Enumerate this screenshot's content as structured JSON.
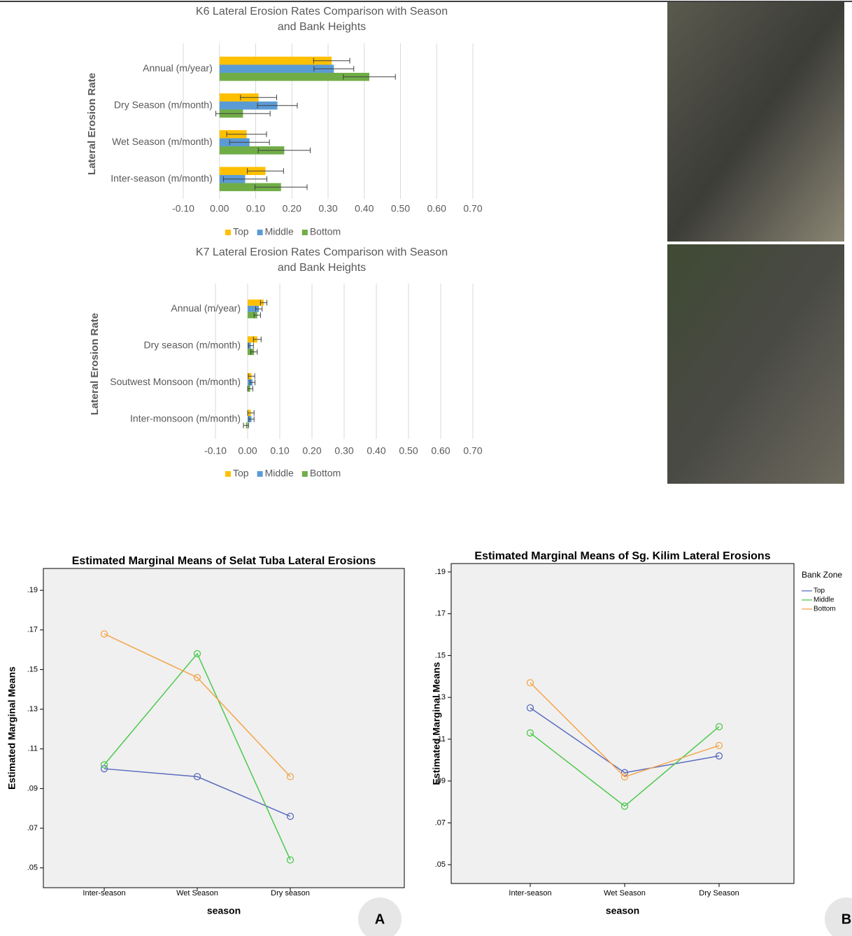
{
  "chart_data": [
    {
      "type": "bar",
      "orientation": "horizontal",
      "title": "K6 Lateral Erosion Rates Comparison with Season and Bank Heights",
      "y_label": "Lateral Erosion Rate",
      "categories": [
        "Annual (m/year)",
        "Dry Season (m/month)",
        "Wet Season (m/month)",
        "Inter-season (m/month)"
      ],
      "series": [
        {
          "name": "Top",
          "color": "#ffc000",
          "values": [
            0.31,
            0.108,
            0.075,
            0.127
          ],
          "errors": [
            0.05,
            0.05,
            0.055,
            0.05
          ]
        },
        {
          "name": "Middle",
          "color": "#5b9bd5",
          "values": [
            0.316,
            0.16,
            0.083,
            0.071
          ],
          "errors": [
            0.055,
            0.055,
            0.055,
            0.06
          ]
        },
        {
          "name": "Bottom",
          "color": "#70ad47",
          "values": [
            0.414,
            0.065,
            0.179,
            0.17
          ],
          "errors": [
            0.072,
            0.075,
            0.072,
            0.072
          ]
        }
      ],
      "xlim": [
        -0.1,
        0.7
      ],
      "xticks": [
        {
          "value": -0.1,
          "label": "-0.10"
        },
        {
          "value": 0,
          "label": "0.00"
        },
        {
          "value": 0.1,
          "label": "0.10"
        },
        {
          "value": 0.2,
          "label": "0.20"
        },
        {
          "value": 0.3,
          "label": "0.30"
        },
        {
          "value": 0.4,
          "label": "0.40"
        },
        {
          "value": 0.5,
          "label": "0.50"
        },
        {
          "value": 0.6,
          "label": "0.60"
        },
        {
          "value": 0.7,
          "label": "0.70"
        }
      ],
      "grid": true,
      "legend": "bottom"
    },
    {
      "type": "bar",
      "orientation": "horizontal",
      "title": "K7 Lateral Erosion Rates Comparison with Season and Bank Heights",
      "y_label": "Lateral Erosion Rate",
      "categories": [
        "Annual (m/year)",
        "Dry season (m/month)",
        "Soutwest Monsoon (m/month)",
        "Inter-monsoon (m/month)"
      ],
      "series": [
        {
          "name": "Top",
          "color": "#ffc000",
          "values": [
            0.05,
            0.03,
            0.012,
            0.01
          ],
          "errors": [
            0.01,
            0.012,
            0.01,
            0.01
          ]
        },
        {
          "name": "Middle",
          "color": "#5b9bd5",
          "values": [
            0.035,
            0.01,
            0.015,
            0.012
          ],
          "errors": [
            0.01,
            0.008,
            0.008,
            0.008
          ]
        },
        {
          "name": "Bottom",
          "color": "#70ad47",
          "values": [
            0.03,
            0.02,
            0.008,
            -0.005
          ],
          "errors": [
            0.01,
            0.01,
            0.008,
            0.008
          ]
        }
      ],
      "xlim": [
        -0.1,
        0.7
      ],
      "xticks": [
        {
          "value": -0.1,
          "label": "-0.10"
        },
        {
          "value": 0,
          "label": "0.00"
        },
        {
          "value": 0.1,
          "label": "0.10"
        },
        {
          "value": 0.2,
          "label": "0.20"
        },
        {
          "value": 0.3,
          "label": "0.30"
        },
        {
          "value": 0.4,
          "label": "0.40"
        },
        {
          "value": 0.5,
          "label": "0.50"
        },
        {
          "value": 0.6,
          "label": "0.60"
        },
        {
          "value": 0.7,
          "label": "0.70"
        }
      ],
      "grid": true,
      "legend": "bottom"
    },
    {
      "type": "line",
      "title": "Estimated Marginal Means of Selat Tuba Lateral Erosions",
      "x_label": "season",
      "y_label": "Estimated Marginal Means",
      "categories": [
        "Inter-season",
        "Wet Season",
        "Dry season"
      ],
      "series": [
        {
          "color": "#5a6bbf",
          "values": [
            0.1,
            0.096,
            0.076
          ]
        },
        {
          "color": "#4dc94d",
          "values": [
            0.102,
            0.158,
            0.054
          ]
        },
        {
          "color": "#f5a54a",
          "values": [
            0.168,
            0.146,
            0.096
          ]
        }
      ],
      "ylim": [
        0.04,
        0.201
      ],
      "yticks": [
        {
          "value": 0.05,
          "label": ".05"
        },
        {
          "value": 0.07,
          "label": ".07"
        },
        {
          "value": 0.09,
          "label": ".09"
        },
        {
          "value": 0.11,
          "label": ".11"
        },
        {
          "value": 0.13,
          "label": ".13"
        },
        {
          "value": 0.15,
          "label": ".15"
        },
        {
          "value": 0.17,
          "label": ".17"
        },
        {
          "value": 0.19,
          "label": ".19"
        }
      ],
      "grid": false,
      "panel_label": "A"
    },
    {
      "type": "line",
      "title": "Estimated Marginal Means of Sg. Kilim Lateral Erosions",
      "x_label": "season",
      "y_label": "Estimated Marginal Means",
      "categories": [
        "Inter-season",
        "Wet Season",
        "Dry Season"
      ],
      "series": [
        {
          "name": "Top",
          "color": "#5a6bbf",
          "values": [
            0.125,
            0.094,
            0.102
          ]
        },
        {
          "name": "Middle",
          "color": "#4dc94d",
          "values": [
            0.113,
            0.078,
            0.116
          ]
        },
        {
          "name": "Bottom",
          "color": "#f5a54a",
          "values": [
            0.137,
            0.092,
            0.107
          ]
        }
      ],
      "ylim": [
        0.041,
        0.194
      ],
      "yticks": [
        {
          "value": 0.05,
          "label": ".05"
        },
        {
          "value": 0.07,
          "label": ".07"
        },
        {
          "value": 0.09,
          "label": ".09"
        },
        {
          "value": 0.11,
          "label": ".11"
        },
        {
          "value": 0.13,
          "label": ".13"
        },
        {
          "value": 0.15,
          "label": ".15"
        },
        {
          "value": 0.17,
          "label": ".17"
        },
        {
          "value": 0.19,
          "label": ".19"
        }
      ],
      "grid": false,
      "legend": "right",
      "legend_title": "Bank Zone",
      "panel_label": "B"
    }
  ]
}
